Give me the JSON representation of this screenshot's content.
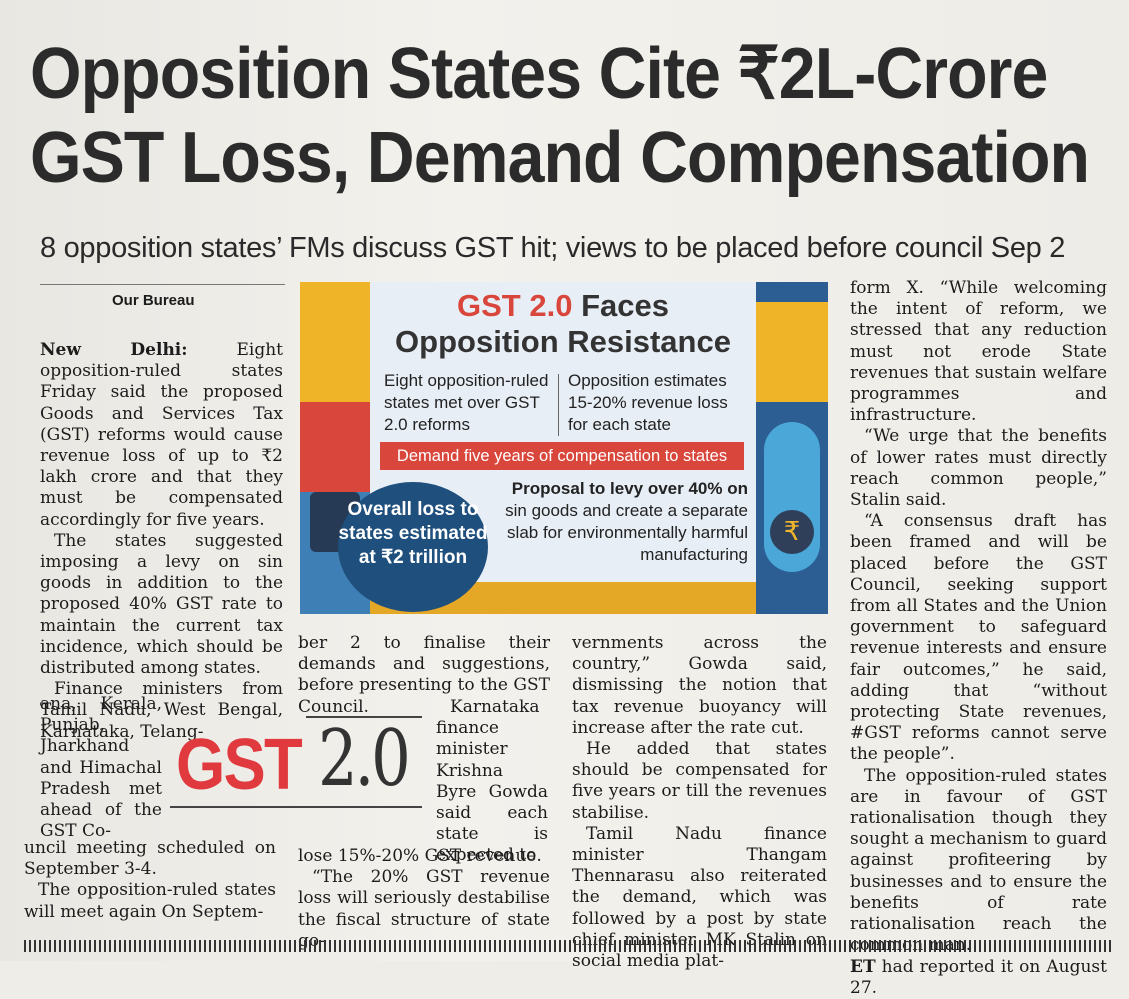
{
  "headline_line1": "Opposition States Cite ₹2L-Crore",
  "headline_line2": "GST Loss, Demand Compensation",
  "subhead": "8 opposition states’ FMs discuss GST hit; views to be placed before council Sep 2",
  "byline": "Our Bureau",
  "col1": {
    "dateline": "New Delhi:",
    "p1": "Eight opposition-ruled states Friday said the proposed Goods and Services Tax (GST) reforms would cause revenue loss of up to ₹2 lakh crore and that they must be compensated accordingly for five years.",
    "p2": "The states suggested imposing a levy on sin goods in addition to the proposed 40% GST rate to maintain the current tax incidence, which should be distributed among states.",
    "p3a": "Finance ministers from Tamil Nadu, West Bengal, Karnataka, Telang-",
    "p3b": "ana, Kerala, Punjab, Jharkhand and Himachal Pradesh met ahead of the GST Co-",
    "p3c": "uncil meeting scheduled on September 3-4.",
    "p4": "The opposition-ruled states will meet again On Septem-"
  },
  "col2": {
    "p1": "ber 2 to finalise their demands and suggestions, before presenting to the GST Council.",
    "p2": "Karnataka finance minister Krishna Byre Gowda said each state is expected to",
    "p2b": "lose 15%-20% GST revenue.",
    "p3": "“The 20% GST revenue loss will seriously destabilise the fiscal structure of state go-"
  },
  "col3": {
    "p1": "vernments across the country,” Gowda said, dismissing the notion that tax revenue buoyancy will increase after the rate cut.",
    "p2": "He added that states should be compensated for five years or till the revenues stabilise.",
    "p3": "Tamil Nadu finance minister Thangam Thennarasu also reiterated the demand, which was followed by a post by state chief minister MK Stalin on social media plat-"
  },
  "col4": {
    "p1": "form X. “While welcoming the intent of reform, we stressed that any reduction must not erode State revenues that sustain welfare programmes and infrastructure.",
    "p2": "“We urge that the benefits of lower rates must directly reach common people,” Stalin said.",
    "p3": "“A consensus draft has been framed and will be placed before the GST Council, seeking support from all States and the Union government to safeguard revenue interests and ensure fair outcomes,” he said, adding that “without protecting State revenues, #GST reforms cannot serve the people”.",
    "p4": "The opposition-ruled states are in favour of GST rationalisation though they sought a mechanism to guard against profiteering by businesses and to ensure the benefits of rate rationalisation reach the common man.",
    "p5_bold": "ET",
    "p5": " had reported it on August 27."
  },
  "infographic": {
    "title_red": "GST 2.0",
    "title_rest1": " Faces",
    "title_line2": "Opposition Resistance",
    "col1": "Eight opposition-ruled states met over GST 2.0 reforms",
    "col2": "Opposition estimates 15-20% revenue loss for each state",
    "demand": "Demand five years of compensation to states",
    "proposal_bold": "Proposal to levy over 40% on",
    "proposal_rest": "sin goods and create a separate slab for environmentally harmful manufacturing",
    "loss": "Overall loss to states estimated at ₹2 trillion",
    "rupee_symbol": "₹"
  },
  "logo": {
    "gst": "GST",
    "version": "2.0"
  },
  "colors": {
    "accent_red": "#d9463b",
    "navy": "#1f4f7d"
  }
}
